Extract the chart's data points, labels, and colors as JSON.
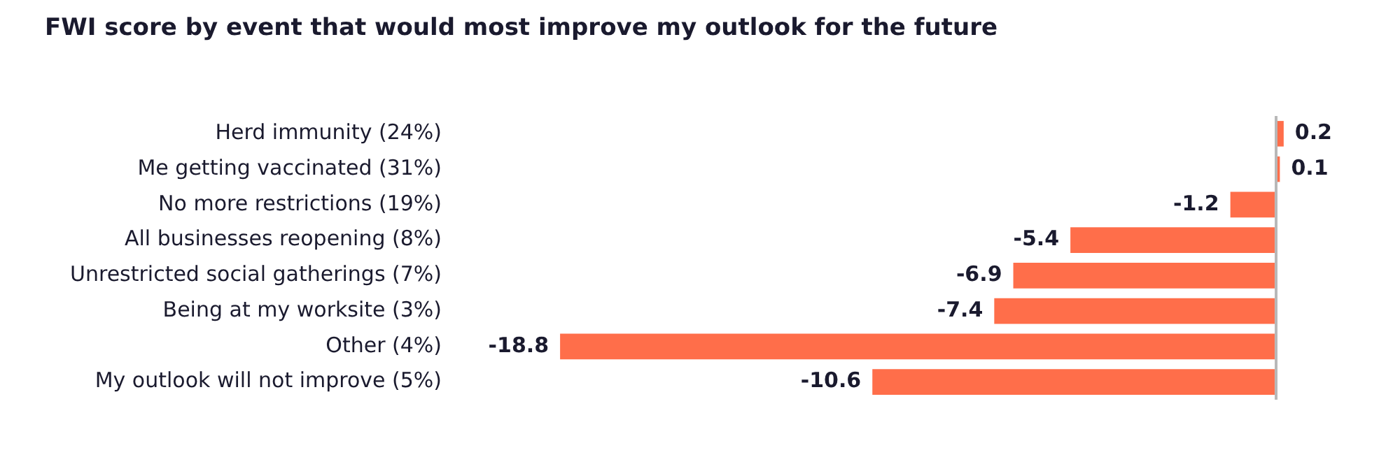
{
  "chart_data": {
    "type": "bar",
    "orientation": "horizontal",
    "title": "FWI score by event that would most improve my outlook for the future",
    "categories": [
      "Herd immunity (24%)",
      "Me getting vaccinated (31%)",
      "No more restrictions (19%)",
      "All businesses reopening (8%)",
      "Unrestricted social gatherings (7%)",
      "Being at my worksite (3%)",
      "Other (4%)",
      "My outlook will not improve (5%)"
    ],
    "values": [
      0.2,
      0.1,
      -1.2,
      -5.4,
      -6.9,
      -7.4,
      -18.8,
      -10.6
    ],
    "color": "#ff6e4a",
    "data_labels": true,
    "legend": false
  }
}
